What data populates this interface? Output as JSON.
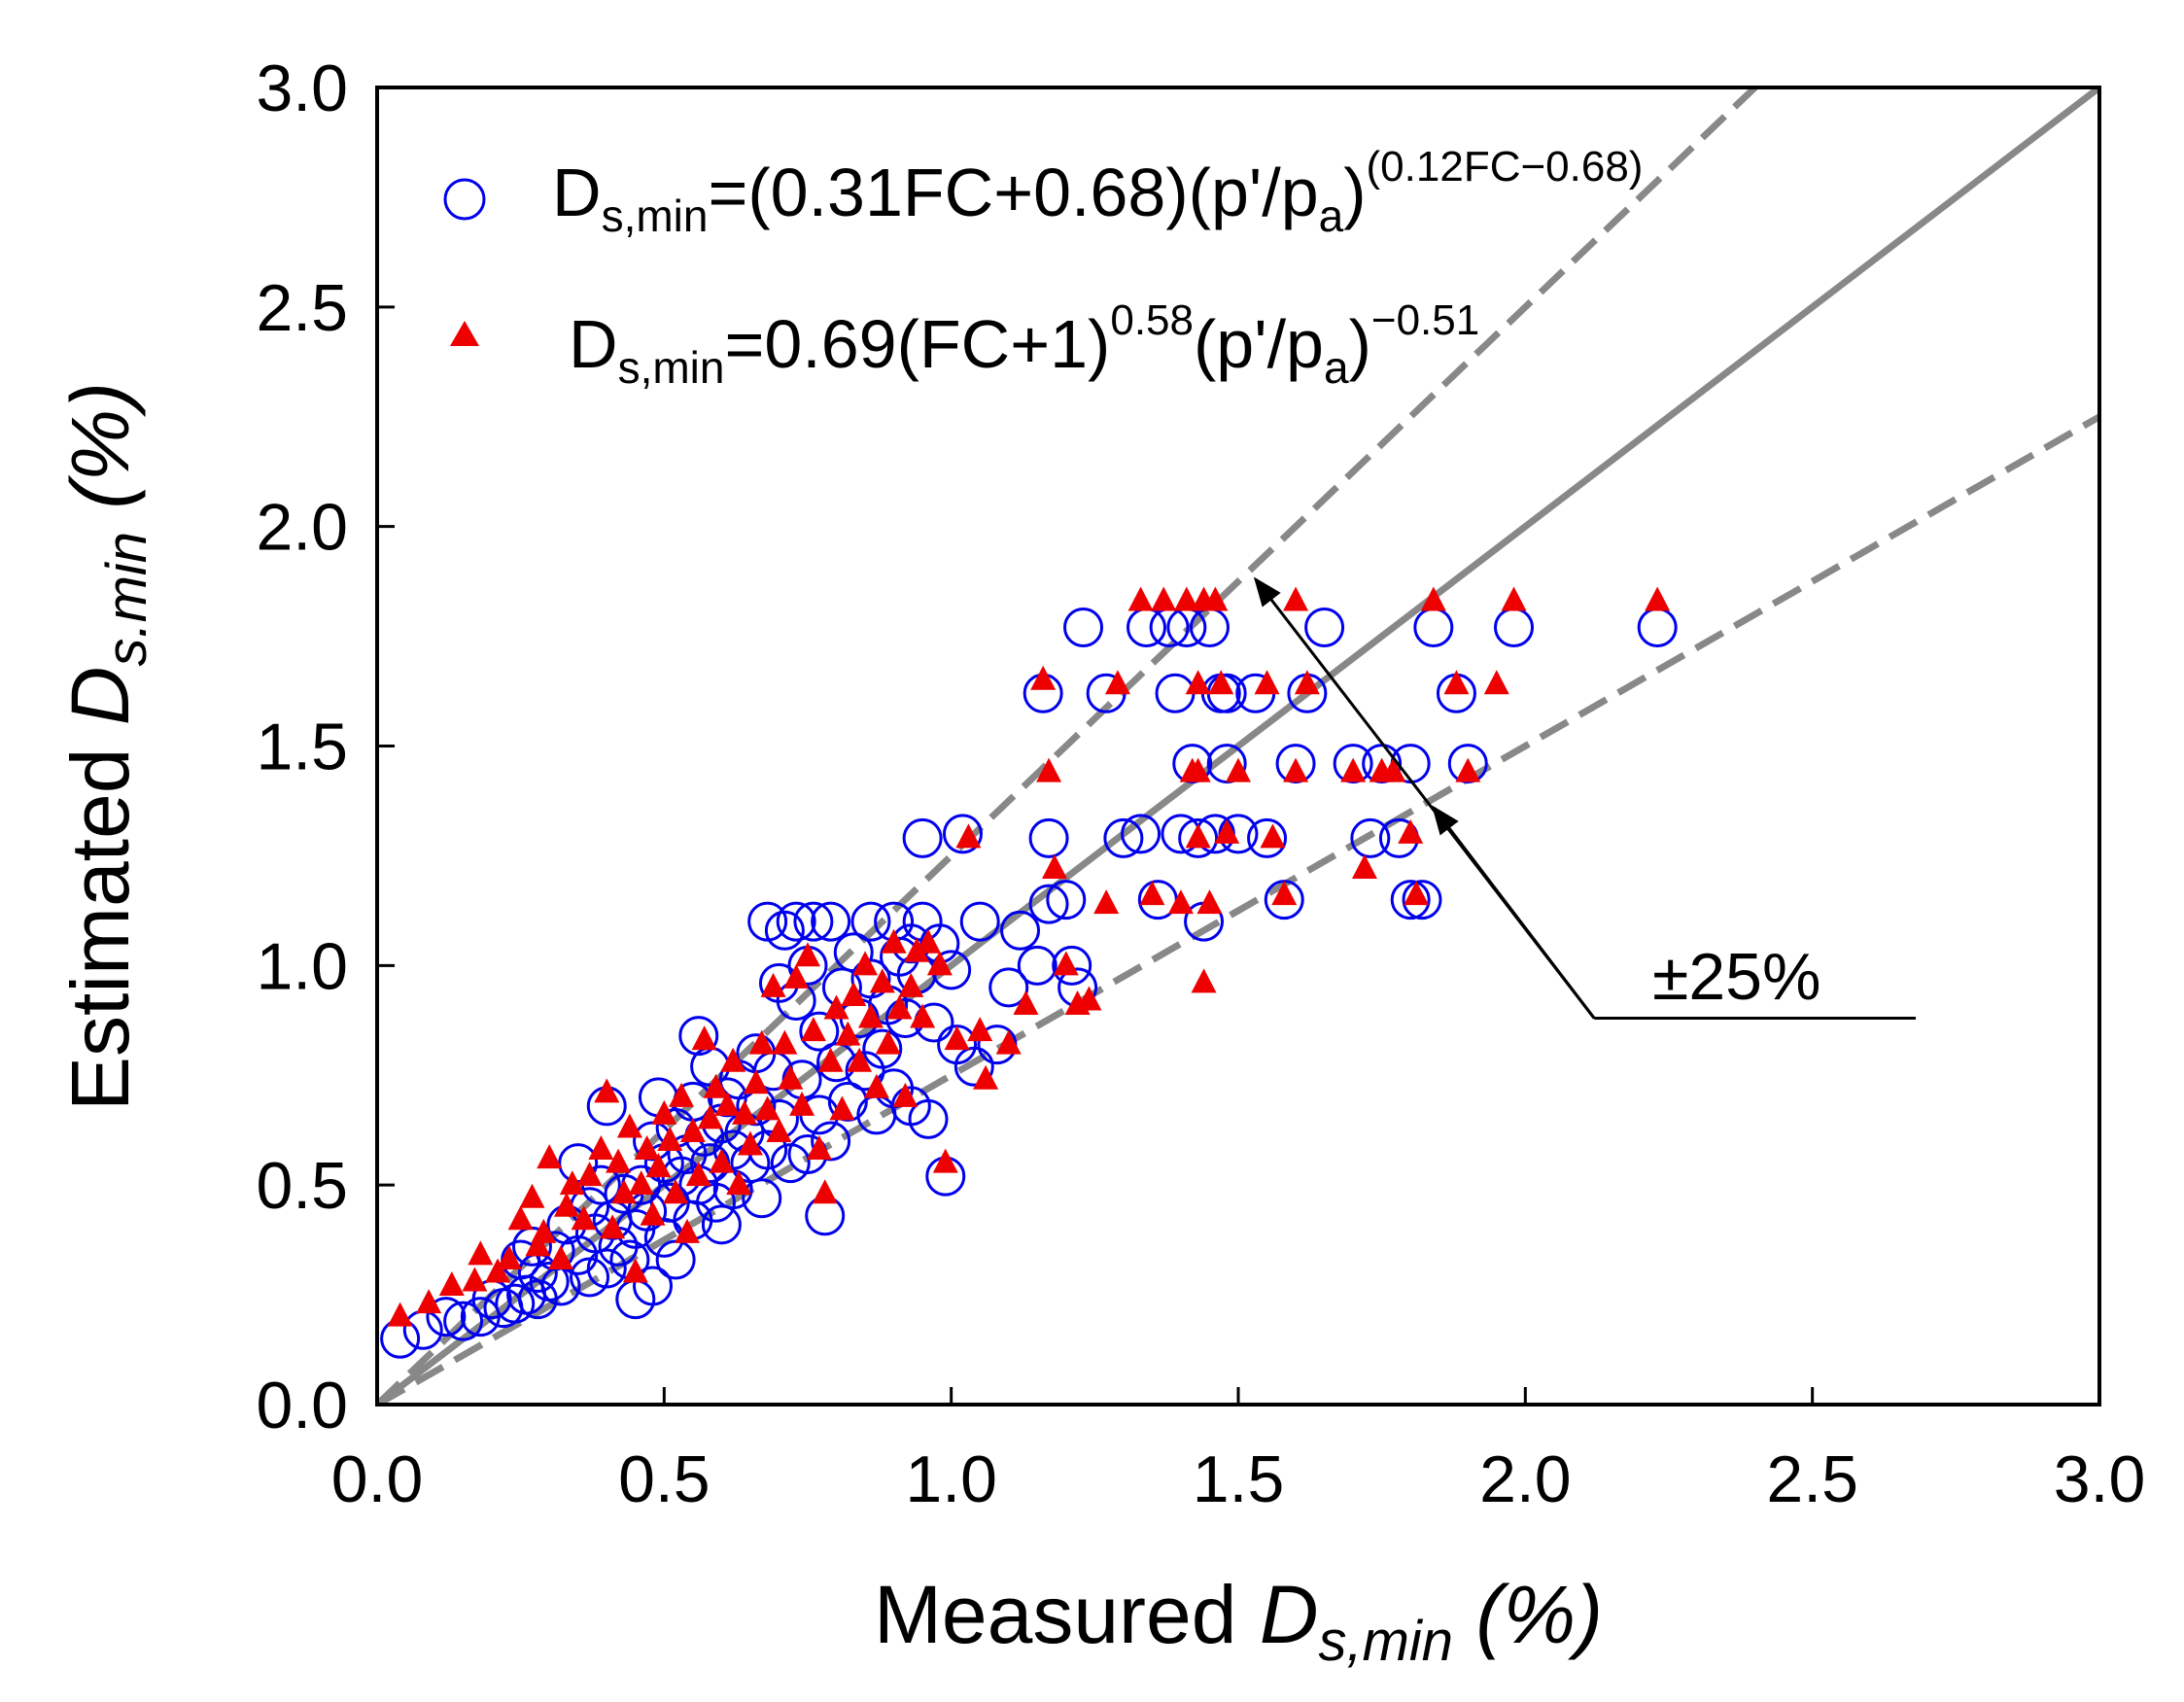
{
  "chart_data": {
    "type": "scatter",
    "xlim": [
      0.0,
      3.0
    ],
    "ylim": [
      0.0,
      3.0
    ],
    "x_ticks": [
      "0.0",
      "0.5",
      "1.0",
      "1.5",
      "2.0",
      "2.5",
      "3.0"
    ],
    "y_ticks": [
      "0.0",
      "0.5",
      "1.0",
      "1.5",
      "2.0",
      "2.5",
      "3.0"
    ],
    "xlabel": {
      "main": "Measured ",
      "symbol": "D",
      "subscript": "s,min",
      "unit": " (%)"
    },
    "ylabel": {
      "main": "Estimated ",
      "symbol": "D",
      "subscript": "s.min",
      "unit": " (%)"
    },
    "legend": [
      {
        "name": "circle-series",
        "marker": "open-circle",
        "color": "#0000ee",
        "label_base": "D",
        "label_sub": "s,min",
        "label_mid": "=(0.31FC+0.68)(p'/p",
        "label_sub2": "a",
        "label_end": ")",
        "label_sup": "(0.12FC−0.68)",
        "label_sup2": ""
      },
      {
        "name": "triangle-series",
        "marker": "filled-triangle",
        "color": "#ee0000",
        "label_base": "D",
        "label_sub": "s,min",
        "label_mid": "=0.69(FC+1)",
        "label_sup": "0.58",
        "label_mid2": "(p'/p",
        "label_sub2": "a",
        "label_end": ")",
        "label_sup2": "−0.51"
      }
    ],
    "reference_lines": [
      {
        "name": "1:1 line",
        "slope": 1.0,
        "style": "solid",
        "color": "#888888"
      },
      {
        "name": "+25% line",
        "slope": 1.25,
        "style": "dashed",
        "color": "#888888"
      },
      {
        "name": "-25% line",
        "slope": 0.75,
        "style": "dashed",
        "color": "#888888"
      }
    ],
    "annotation": {
      "text": "±25%",
      "arrow_tips": [
        [
          1.53,
          1.88
        ],
        [
          1.84,
          1.36
        ]
      ],
      "arrow_base": [
        2.12,
        0.88
      ]
    },
    "series": [
      {
        "name": "circle-series",
        "points": [
          [
            0.04,
            0.15
          ],
          [
            0.08,
            0.17
          ],
          [
            0.12,
            0.2
          ],
          [
            0.15,
            0.19
          ],
          [
            0.18,
            0.2
          ],
          [
            0.2,
            0.24
          ],
          [
            0.22,
            0.22
          ],
          [
            0.24,
            0.23
          ],
          [
            0.26,
            0.25
          ],
          [
            0.28,
            0.24
          ],
          [
            0.25,
            0.33
          ],
          [
            0.27,
            0.36
          ],
          [
            0.28,
            0.3
          ],
          [
            0.3,
            0.28
          ],
          [
            0.31,
            0.35
          ],
          [
            0.32,
            0.27
          ],
          [
            0.33,
            0.41
          ],
          [
            0.35,
            0.34
          ],
          [
            0.35,
            0.55
          ],
          [
            0.37,
            0.29
          ],
          [
            0.37,
            0.45
          ],
          [
            0.38,
            0.39
          ],
          [
            0.39,
            0.5
          ],
          [
            0.4,
            0.68
          ],
          [
            0.4,
            0.31
          ],
          [
            0.41,
            0.42
          ],
          [
            0.42,
            0.36
          ],
          [
            0.43,
            0.48
          ],
          [
            0.44,
            0.33
          ],
          [
            0.45,
            0.4
          ],
          [
            0.45,
            0.24
          ],
          [
            0.46,
            0.5
          ],
          [
            0.47,
            0.44
          ],
          [
            0.48,
            0.6
          ],
          [
            0.48,
            0.27
          ],
          [
            0.49,
            0.7
          ],
          [
            0.5,
            0.38
          ],
          [
            0.5,
            0.55
          ],
          [
            0.51,
            0.46
          ],
          [
            0.52,
            0.63
          ],
          [
            0.52,
            0.33
          ],
          [
            0.53,
            0.52
          ],
          [
            0.54,
            0.57
          ],
          [
            0.55,
            0.69
          ],
          [
            0.55,
            0.42
          ],
          [
            0.56,
            0.5
          ],
          [
            0.56,
            0.84
          ],
          [
            0.57,
            0.61
          ],
          [
            0.58,
            0.77
          ],
          [
            0.58,
            0.55
          ],
          [
            0.59,
            0.46
          ],
          [
            0.6,
            0.64
          ],
          [
            0.6,
            0.41
          ],
          [
            0.61,
            0.7
          ],
          [
            0.62,
            0.58
          ],
          [
            0.62,
            0.49
          ],
          [
            0.63,
            0.74
          ],
          [
            0.64,
            0.62
          ],
          [
            0.65,
            0.55
          ],
          [
            0.66,
            0.8
          ],
          [
            0.66,
            0.68
          ],
          [
            0.67,
            0.47
          ],
          [
            0.68,
            0.58
          ],
          [
            0.68,
            1.1
          ],
          [
            0.69,
            0.76
          ],
          [
            0.7,
            0.96
          ],
          [
            0.7,
            0.65
          ],
          [
            0.71,
            1.08
          ],
          [
            0.72,
            0.55
          ],
          [
            0.73,
            0.92
          ],
          [
            0.73,
            1.1
          ],
          [
            0.74,
            0.74
          ],
          [
            0.75,
            1.0
          ],
          [
            0.75,
            0.57
          ],
          [
            0.76,
            1.1
          ],
          [
            0.77,
            0.85
          ],
          [
            0.77,
            0.66
          ],
          [
            0.78,
            0.43
          ],
          [
            0.79,
            0.6
          ],
          [
            0.79,
            1.1
          ],
          [
            0.8,
            0.78
          ],
          [
            0.81,
            0.95
          ],
          [
            0.82,
            0.69
          ],
          [
            0.83,
            1.03
          ],
          [
            0.84,
            0.88
          ],
          [
            0.85,
            0.76
          ],
          [
            0.86,
            0.97
          ],
          [
            0.86,
            1.1
          ],
          [
            0.87,
            0.66
          ],
          [
            0.88,
            0.81
          ],
          [
            0.89,
            0.91
          ],
          [
            0.9,
            1.1
          ],
          [
            0.9,
            0.72
          ],
          [
            0.91,
            1.02
          ],
          [
            0.92,
            0.88
          ],
          [
            0.93,
            1.05
          ],
          [
            0.93,
            0.68
          ],
          [
            0.94,
            0.98
          ],
          [
            0.95,
            1.29
          ],
          [
            0.95,
            1.1
          ],
          [
            0.96,
            0.65
          ],
          [
            0.97,
            0.87
          ],
          [
            0.98,
            1.05
          ],
          [
            0.99,
            0.52
          ],
          [
            1.0,
            0.99
          ],
          [
            1.01,
            0.82
          ],
          [
            1.02,
            1.3
          ],
          [
            1.04,
            0.77
          ],
          [
            1.05,
            1.1
          ],
          [
            1.08,
            0.82
          ],
          [
            1.1,
            0.95
          ],
          [
            1.12,
            1.08
          ],
          [
            1.15,
            1.0
          ],
          [
            1.17,
            1.14
          ],
          [
            1.17,
            1.29
          ],
          [
            1.2,
            1.15
          ],
          [
            1.21,
            1.0
          ],
          [
            1.22,
            0.95
          ],
          [
            1.23,
            1.77
          ],
          [
            1.27,
            1.62
          ],
          [
            1.3,
            1.29
          ],
          [
            1.33,
            1.3
          ],
          [
            1.34,
            1.77
          ],
          [
            1.36,
            1.15
          ],
          [
            1.38,
            1.77
          ],
          [
            1.4,
            1.3
          ],
          [
            1.41,
            1.77
          ],
          [
            1.42,
            1.46
          ],
          [
            1.43,
            1.29
          ],
          [
            1.44,
            1.1
          ],
          [
            1.45,
            1.77
          ],
          [
            1.46,
            1.3
          ],
          [
            1.47,
            1.62
          ],
          [
            1.48,
            1.46
          ],
          [
            1.5,
            1.3
          ],
          [
            1.53,
            1.62
          ],
          [
            1.58,
            1.15
          ],
          [
            1.62,
            1.62
          ],
          [
            1.65,
            1.77
          ],
          [
            1.7,
            1.46
          ],
          [
            1.73,
            1.29
          ],
          [
            1.75,
            1.46
          ],
          [
            1.78,
            1.29
          ],
          [
            1.8,
            1.46
          ],
          [
            1.8,
            1.15
          ],
          [
            1.82,
            1.15
          ],
          [
            1.84,
            1.77
          ],
          [
            1.88,
            1.62
          ],
          [
            1.9,
            1.46
          ],
          [
            1.98,
            1.77
          ],
          [
            2.23,
            1.77
          ],
          [
            1.6,
            1.46
          ],
          [
            1.55,
            1.29
          ],
          [
            1.48,
            1.62
          ],
          [
            1.39,
            1.62
          ],
          [
            1.16,
            1.62
          ]
        ]
      },
      {
        "name": "triangle-series",
        "points": [
          [
            0.04,
            0.2
          ],
          [
            0.09,
            0.23
          ],
          [
            0.13,
            0.27
          ],
          [
            0.17,
            0.28
          ],
          [
            0.18,
            0.34
          ],
          [
            0.21,
            0.3
          ],
          [
            0.23,
            0.33
          ],
          [
            0.25,
            0.42
          ],
          [
            0.27,
            0.47
          ],
          [
            0.28,
            0.36
          ],
          [
            0.29,
            0.39
          ],
          [
            0.3,
            0.56
          ],
          [
            0.32,
            0.33
          ],
          [
            0.33,
            0.45
          ],
          [
            0.34,
            0.5
          ],
          [
            0.36,
            0.42
          ],
          [
            0.37,
            0.52
          ],
          [
            0.39,
            0.58
          ],
          [
            0.4,
            0.71
          ],
          [
            0.41,
            0.4
          ],
          [
            0.42,
            0.55
          ],
          [
            0.43,
            0.48
          ],
          [
            0.44,
            0.63
          ],
          [
            0.45,
            0.3
          ],
          [
            0.46,
            0.5
          ],
          [
            0.47,
            0.58
          ],
          [
            0.48,
            0.43
          ],
          [
            0.49,
            0.54
          ],
          [
            0.5,
            0.66
          ],
          [
            0.51,
            0.6
          ],
          [
            0.52,
            0.48
          ],
          [
            0.53,
            0.7
          ],
          [
            0.54,
            0.39
          ],
          [
            0.55,
            0.62
          ],
          [
            0.56,
            0.52
          ],
          [
            0.57,
            0.83
          ],
          [
            0.58,
            0.65
          ],
          [
            0.59,
            0.72
          ],
          [
            0.6,
            0.55
          ],
          [
            0.61,
            0.68
          ],
          [
            0.62,
            0.78
          ],
          [
            0.63,
            0.5
          ],
          [
            0.64,
            0.66
          ],
          [
            0.65,
            0.59
          ],
          [
            0.66,
            0.73
          ],
          [
            0.67,
            0.82
          ],
          [
            0.68,
            0.67
          ],
          [
            0.69,
            0.95
          ],
          [
            0.7,
            0.62
          ],
          [
            0.71,
            0.82
          ],
          [
            0.72,
            0.74
          ],
          [
            0.73,
            0.97
          ],
          [
            0.74,
            0.68
          ],
          [
            0.75,
            1.02
          ],
          [
            0.76,
            0.85
          ],
          [
            0.77,
            0.58
          ],
          [
            0.78,
            0.48
          ],
          [
            0.79,
            0.78
          ],
          [
            0.8,
            0.9
          ],
          [
            0.81,
            0.67
          ],
          [
            0.82,
            0.84
          ],
          [
            0.83,
            0.93
          ],
          [
            0.84,
            0.78
          ],
          [
            0.85,
            1.0
          ],
          [
            0.86,
            0.88
          ],
          [
            0.87,
            0.72
          ],
          [
            0.88,
            0.96
          ],
          [
            0.89,
            0.82
          ],
          [
            0.9,
            1.05
          ],
          [
            0.91,
            0.9
          ],
          [
            0.92,
            0.7
          ],
          [
            0.93,
            0.95
          ],
          [
            0.94,
            1.03
          ],
          [
            0.95,
            0.88
          ],
          [
            0.96,
            1.05
          ],
          [
            0.98,
            1.0
          ],
          [
            0.99,
            0.55
          ],
          [
            1.01,
            0.83
          ],
          [
            1.03,
            1.29
          ],
          [
            1.05,
            0.85
          ],
          [
            1.06,
            0.74
          ],
          [
            1.1,
            0.82
          ],
          [
            1.13,
            0.91
          ],
          [
            1.16,
            1.65
          ],
          [
            1.18,
            1.22
          ],
          [
            1.2,
            1.0
          ],
          [
            1.22,
            0.91
          ],
          [
            1.24,
            0.92
          ],
          [
            1.27,
            1.14
          ],
          [
            1.29,
            1.64
          ],
          [
            1.33,
            1.83
          ],
          [
            1.35,
            1.16
          ],
          [
            1.37,
            1.83
          ],
          [
            1.4,
            1.14
          ],
          [
            1.41,
            1.83
          ],
          [
            1.42,
            1.44
          ],
          [
            1.43,
            1.29
          ],
          [
            1.44,
            1.83
          ],
          [
            1.44,
            0.96
          ],
          [
            1.45,
            1.14
          ],
          [
            1.46,
            1.83
          ],
          [
            1.47,
            1.64
          ],
          [
            1.48,
            1.3
          ],
          [
            1.5,
            1.44
          ],
          [
            1.55,
            1.64
          ],
          [
            1.58,
            1.16
          ],
          [
            1.6,
            1.83
          ],
          [
            1.62,
            1.64
          ],
          [
            1.7,
            1.44
          ],
          [
            1.72,
            1.22
          ],
          [
            1.75,
            1.44
          ],
          [
            1.77,
            1.44
          ],
          [
            1.8,
            1.3
          ],
          [
            1.81,
            1.16
          ],
          [
            1.84,
            1.83
          ],
          [
            1.88,
            1.64
          ],
          [
            1.9,
            1.44
          ],
          [
            1.95,
            1.64
          ],
          [
            1.98,
            1.83
          ],
          [
            2.23,
            1.83
          ],
          [
            1.6,
            1.44
          ],
          [
            1.56,
            1.29
          ],
          [
            1.43,
            1.44
          ],
          [
            1.17,
            1.44
          ],
          [
            1.43,
            1.64
          ]
        ]
      }
    ]
  }
}
